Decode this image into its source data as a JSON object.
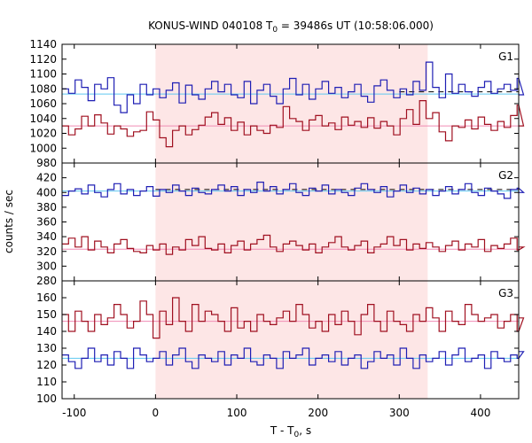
{
  "chart_data": {
    "type": "line",
    "title_prefix": "KONUS-WIND 040108 T",
    "title_sub": "0",
    "title_suffix": " = 39486s UT (10:58:06.000)",
    "xlabel_prefix": "T - T",
    "xlabel_sub": "0",
    "xlabel_suffix": ", s",
    "ylabel": "counts / sec",
    "xlim": [
      -115,
      447
    ],
    "xticks": [
      -100,
      0,
      100,
      200,
      300,
      400
    ],
    "x_tick_labels": [
      "-100",
      "0",
      "100",
      "200",
      "300",
      "400"
    ],
    "highlight_interval": [
      0,
      335
    ],
    "highlight_color": "#fde6e6",
    "grid": false,
    "colors": {
      "G": "#1f1fb4",
      "R": "#a01020",
      "bg_blue": "#5fc8f0",
      "bg_pink": "#f08cb4",
      "dashed": "#000000"
    },
    "panels": [
      {
        "label": "G1",
        "ylim": [
          980,
          1140
        ],
        "yticks": [
          980,
          1000,
          1020,
          1040,
          1060,
          1080,
          1100,
          1120,
          1140
        ],
        "y_tick_labels": [
          "980",
          "1000",
          "1020",
          "1040",
          "1060",
          "1080",
          "1100",
          "1120",
          "1140"
        ],
        "bg_blue": 1073,
        "bg_pink": 1030,
        "dashed": {
          "from": 300,
          "value": 1076
        },
        "series": [
          {
            "color": "blue",
            "x_start": -115,
            "step": 8,
            "values": [
              1080,
              1074,
              1092,
              1082,
              1064,
              1086,
              1080,
              1095,
              1058,
              1048,
              1072,
              1060,
              1086,
              1072,
              1080,
              1068,
              1078,
              1088,
              1061,
              1085,
              1072,
              1066,
              1080,
              1090,
              1076,
              1086,
              1072,
              1068,
              1090,
              1060,
              1078,
              1086,
              1070,
              1060,
              1080,
              1094,
              1072,
              1086,
              1066,
              1080,
              1090,
              1074,
              1082,
              1068,
              1076,
              1086,
              1070,
              1062,
              1084,
              1092,
              1078,
              1068,
              1080,
              1072,
              1090,
              1078,
              1116,
              1082,
              1068,
              1100,
              1074,
              1086,
              1076,
              1070,
              1082,
              1090,
              1074,
              1080,
              1086,
              1078,
              1094,
              1072
            ]
          },
          {
            "color": "red",
            "x_start": -115,
            "step": 8,
            "values": [
              1030,
              1018,
              1026,
              1043,
              1030,
              1045,
              1034,
              1019,
              1030,
              1026,
              1016,
              1022,
              1024,
              1049,
              1038,
              1014,
              1002,
              1024,
              1030,
              1018,
              1025,
              1031,
              1042,
              1048,
              1032,
              1041,
              1024,
              1035,
              1018,
              1030,
              1024,
              1020,
              1031,
              1028,
              1056,
              1040,
              1036,
              1024,
              1038,
              1044,
              1030,
              1034,
              1025,
              1042,
              1031,
              1036,
              1028,
              1041,
              1027,
              1036,
              1030,
              1018,
              1040,
              1052,
              1032,
              1064,
              1040,
              1048,
              1022,
              1010,
              1030,
              1028,
              1038,
              1026,
              1042,
              1032,
              1024,
              1036,
              1028,
              1044,
              1058,
              1030
            ]
          }
        ]
      },
      {
        "label": "G2",
        "ylim": [
          280,
          430
        ],
        "yticks": [
          280,
          300,
          320,
          340,
          360,
          380,
          400,
          420
        ],
        "y_tick_labels": [
          "280",
          "300",
          "320",
          "340",
          "360",
          "380",
          "400",
          "420"
        ],
        "bg_blue": 402,
        "bg_pink": 323,
        "dashed": {
          "from": 0,
          "value": 404
        },
        "series": [
          {
            "color": "blue",
            "x_start": -115,
            "step": 8,
            "values": [
              396,
              402,
              405,
              398,
              410,
              400,
              394,
              404,
              412,
              398,
              404,
              396,
              402,
              408,
              395,
              404,
              400,
              410,
              402,
              396,
              406,
              400,
              398,
              404,
              410,
              402,
              408,
              396,
              404,
              400,
              414,
              402,
              408,
              398,
              404,
              412,
              400,
              396,
              406,
              402,
              410,
              398,
              404,
              400,
              396,
              406,
              412,
              404,
              400,
              408,
              394,
              402,
              410,
              400,
              406,
              398,
              404,
              396,
              402,
              408,
              398,
              404,
              412,
              400,
              396,
              406,
              402,
              398,
              392,
              404,
              406,
              400
            ]
          },
          {
            "color": "red",
            "x_start": -115,
            "step": 8,
            "values": [
              330,
              338,
              326,
              340,
              322,
              334,
              326,
              318,
              330,
              336,
              324,
              320,
              318,
              328,
              322,
              330,
              316,
              326,
              322,
              336,
              328,
              340,
              324,
              322,
              330,
              318,
              328,
              334,
              322,
              330,
              336,
              342,
              326,
              320,
              330,
              334,
              328,
              322,
              330,
              318,
              326,
              332,
              340,
              326,
              322,
              328,
              334,
              318,
              326,
              330,
              340,
              328,
              336,
              322,
              330,
              324,
              332,
              326,
              320,
              328,
              334,
              322,
              330,
              326,
              336,
              320,
              328,
              324,
              330,
              338,
              322,
              326
            ]
          }
        ]
      },
      {
        "label": "G3",
        "ylim": [
          100,
          170
        ],
        "yticks": [
          100,
          110,
          120,
          130,
          140,
          150,
          160
        ],
        "y_tick_labels": [
          "100",
          "110",
          "120",
          "130",
          "140",
          "150",
          "160"
        ],
        "bg_blue": 124,
        "bg_pink": 146,
        "dashed": null,
        "series": [
          {
            "color": "red",
            "x_start": -115,
            "step": 8,
            "values": [
              150,
              140,
              152,
              146,
              140,
              150,
              144,
              148,
              156,
              150,
              142,
              146,
              158,
              150,
              136,
              152,
              144,
              160,
              146,
              140,
              156,
              146,
              152,
              150,
              146,
              140,
              154,
              142,
              146,
              140,
              150,
              146,
              144,
              148,
              152,
              146,
              156,
              150,
              142,
              146,
              140,
              150,
              144,
              152,
              146,
              138,
              150,
              156,
              146,
              140,
              152,
              146,
              144,
              140,
              150,
              146,
              154,
              148,
              140,
              152,
              146,
              144,
              156,
              150,
              146,
              148,
              150,
              142,
              146,
              150,
              140,
              148
            ]
          },
          {
            "color": "blue",
            "x_start": -115,
            "step": 8,
            "values": [
              126,
              122,
              118,
              124,
              130,
              122,
              126,
              120,
              128,
              124,
              118,
              130,
              126,
              122,
              124,
              128,
              120,
              126,
              130,
              122,
              118,
              126,
              124,
              122,
              128,
              120,
              126,
              124,
              130,
              122,
              120,
              126,
              124,
              118,
              128,
              124,
              126,
              130,
              120,
              124,
              126,
              122,
              128,
              120,
              124,
              126,
              118,
              122,
              128,
              124,
              126,
              120,
              130,
              124,
              118,
              126,
              122,
              124,
              128,
              120,
              126,
              130,
              122,
              124,
              126,
              118,
              128,
              124,
              122,
              126,
              124,
              128
            ]
          }
        ]
      }
    ]
  }
}
